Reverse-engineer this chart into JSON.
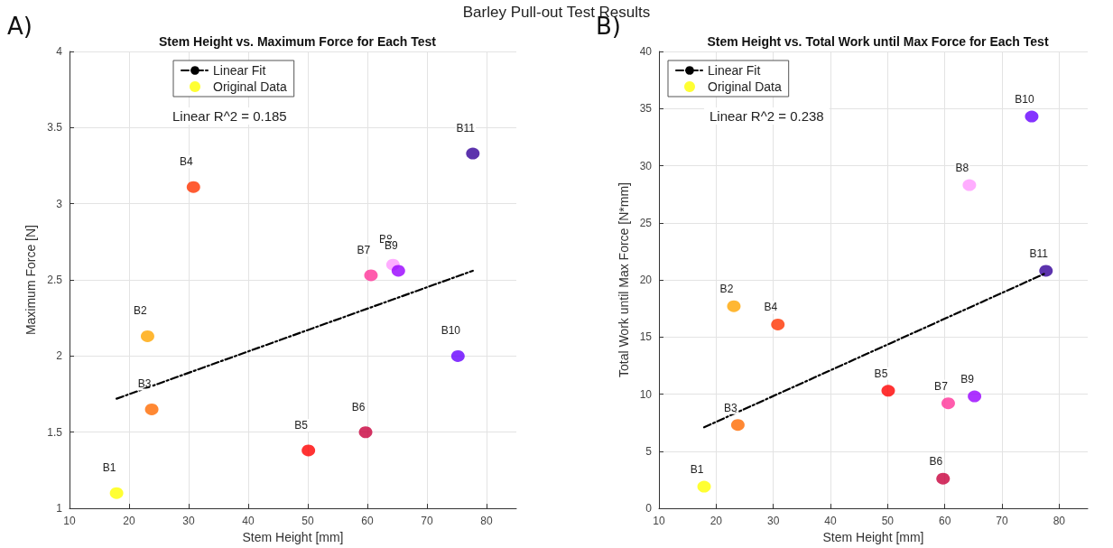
{
  "chart_data": [
    {
      "type": "scatter",
      "title": "Stem Height vs. Maximum Force for Each Test",
      "xlabel": "Stem Height [mm]",
      "ylabel": "Maximum Force [N]",
      "xlim": [
        10,
        85
      ],
      "xticks": [
        10,
        20,
        30,
        40,
        50,
        60,
        70,
        80
      ],
      "ylim": [
        1,
        4
      ],
      "yticks": [
        1,
        1.5,
        2,
        2.5,
        3,
        3.5,
        4
      ],
      "grid": true,
      "legend": "top left",
      "series": [
        {
          "name": "Linear Fit",
          "type": "line",
          "x": [
            17.9,
            77.7
          ],
          "values": [
            1.72,
            2.56
          ],
          "color": "#000000",
          "line_style": "dashed",
          "marker": "none"
        },
        {
          "name": "Original Data",
          "type": "scatter",
          "marker": "circle",
          "color": "#ffff00",
          "x": [
            17.9,
            23.1,
            23.8,
            30.8,
            50.1,
            59.7,
            60.6,
            64.3,
            65.2,
            75.2,
            77.7
          ],
          "values": [
            1.1,
            2.13,
            1.65,
            3.11,
            1.38,
            1.5,
            2.53,
            2.6,
            2.56,
            2.0,
            3.33
          ],
          "colors": [
            "#ffff00",
            "#ffa500",
            "#ff6a00",
            "#ff3300",
            "#ff0000",
            "#c8003c",
            "#ff3399",
            "#ff99ff",
            "#9900ff",
            "#6600ff",
            "#330099"
          ]
        }
      ],
      "annotations": [
        "Barley Pull-out Test Results",
        "A)",
        "Linear R^2 = 0.185",
        {
          "text": "B1",
          "x": 17.9,
          "y": 1.1
        },
        {
          "text": "B2",
          "x": 23.1,
          "y": 2.13
        },
        {
          "text": "B3",
          "x": 23.8,
          "y": 1.65
        },
        {
          "text": "B4",
          "x": 30.8,
          "y": 3.11
        },
        {
          "text": "B5",
          "x": 50.1,
          "y": 1.38
        },
        {
          "text": "B6",
          "x": 59.7,
          "y": 1.5
        },
        {
          "text": "B7",
          "x": 60.6,
          "y": 2.53
        },
        {
          "text": "B8",
          "x": 64.3,
          "y": 2.6
        },
        {
          "text": "B9",
          "x": 65.2,
          "y": 2.56
        },
        {
          "text": "B10",
          "x": 75.2,
          "y": 2.0
        },
        {
          "text": "B11",
          "x": 77.7,
          "y": 3.33
        }
      ]
    },
    {
      "type": "scatter",
      "title": "Stem Height vs. Total Work until Max Force for Each Test",
      "xlabel": "Stem Height [mm]",
      "ylabel": "Total Work until Max Force [N*mm]",
      "xlim": [
        10,
        85
      ],
      "xticks": [
        10,
        20,
        30,
        40,
        50,
        60,
        70,
        80
      ],
      "ylim": [
        0,
        40
      ],
      "yticks": [
        0,
        5,
        10,
        15,
        20,
        25,
        30,
        35,
        40
      ],
      "grid": true,
      "legend": "top left",
      "series": [
        {
          "name": "Linear Fit",
          "type": "line",
          "x": [
            17.9,
            77.7
          ],
          "values": [
            7.1,
            20.6
          ],
          "color": "#000000",
          "line_style": "dashed",
          "marker": "none"
        },
        {
          "name": "Original Data",
          "type": "scatter",
          "marker": "circle",
          "color": "#ffff00",
          "x": [
            17.9,
            23.1,
            23.8,
            30.8,
            50.1,
            59.7,
            60.6,
            64.3,
            65.2,
            75.2,
            77.7
          ],
          "values": [
            1.9,
            17.7,
            7.3,
            16.1,
            10.3,
            2.6,
            9.2,
            28.3,
            9.8,
            34.3,
            20.8
          ],
          "colors": [
            "#ffff00",
            "#ffa500",
            "#ff6a00",
            "#ff3300",
            "#ff0000",
            "#c8003c",
            "#ff3399",
            "#ff99ff",
            "#9900ff",
            "#6600ff",
            "#330099"
          ]
        }
      ],
      "annotations": [
        "B)",
        "Linear R^2 = 0.238",
        {
          "text": "B1",
          "x": 17.9,
          "y": 1.9
        },
        {
          "text": "B2",
          "x": 23.1,
          "y": 17.7
        },
        {
          "text": "B3",
          "x": 23.8,
          "y": 7.3
        },
        {
          "text": "B4",
          "x": 30.8,
          "y": 16.1
        },
        {
          "text": "B5",
          "x": 50.1,
          "y": 10.3
        },
        {
          "text": "B6",
          "x": 59.7,
          "y": 2.6
        },
        {
          "text": "B7",
          "x": 60.6,
          "y": 9.2
        },
        {
          "text": "B8",
          "x": 64.3,
          "y": 28.3
        },
        {
          "text": "B9",
          "x": 65.2,
          "y": 9.8
        },
        {
          "text": "B10",
          "x": 75.2,
          "y": 34.3
        },
        {
          "text": "B11",
          "x": 77.7,
          "y": 20.8
        }
      ]
    }
  ]
}
